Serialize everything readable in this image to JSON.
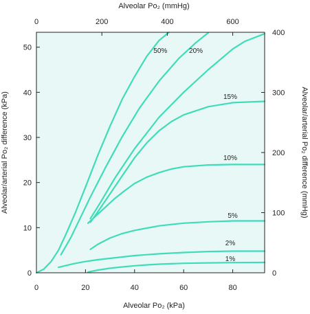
{
  "chart_data": {
    "type": "line",
    "xlabel": "Alveolar Po₂ (kPa)",
    "ylabel": "Alveolar/arterial Po₂ difference (kPa)",
    "x2label": "Alveolar Po₂ (mmHg)",
    "y2label": "Alveolar/arterial Po₂ difference (mmHg)",
    "xlim": [
      0,
      93
    ],
    "ylim": [
      0,
      53.3
    ],
    "x_ticks": [
      0,
      20,
      40,
      60,
      80
    ],
    "y_ticks": [
      0,
      10,
      20,
      30,
      40,
      50
    ],
    "x2_ticks": [
      0,
      200,
      400,
      600
    ],
    "y2_ticks": [
      0,
      100,
      200,
      300,
      400
    ],
    "x2_range_mmHg": [
      0,
      697.5
    ],
    "y2_range_mmHg": [
      0,
      400
    ],
    "background_color": "#e8f8f7",
    "line_color": "#3fdcb8",
    "grid": false,
    "series": [
      {
        "name": "50%",
        "label_at": [
          50.5,
          48.7
        ],
        "points": [
          [
            0,
            0
          ],
          [
            3,
            0.8
          ],
          [
            6,
            2.5
          ],
          [
            9,
            5
          ],
          [
            12,
            8.5
          ],
          [
            16,
            13.5
          ],
          [
            20,
            19
          ],
          [
            25,
            26
          ],
          [
            30,
            32.5
          ],
          [
            35,
            38.5
          ],
          [
            40,
            43.5
          ],
          [
            45,
            48
          ],
          [
            50,
            51.5
          ],
          [
            54,
            53.3
          ]
        ]
      },
      {
        "name": "20%",
        "label_at": [
          65,
          48.7
        ],
        "points": [
          [
            10,
            4
          ],
          [
            14,
            7.8
          ],
          [
            18,
            12.3
          ],
          [
            22,
            16.8
          ],
          [
            28,
            23.2
          ],
          [
            35,
            30.2
          ],
          [
            42,
            36.5
          ],
          [
            50,
            42.5
          ],
          [
            58,
            47.5
          ],
          [
            65,
            51
          ],
          [
            70,
            53.2
          ]
        ]
      },
      {
        "name": "20%",
        "label_at": null,
        "points": [
          [
            22,
            12
          ],
          [
            26,
            15.5
          ],
          [
            32,
            21
          ],
          [
            40,
            27.5
          ],
          [
            50,
            34.5
          ],
          [
            60,
            40
          ],
          [
            70,
            45
          ],
          [
            80,
            49.6
          ],
          [
            85,
            51.3
          ],
          [
            93,
            53
          ]
        ]
      },
      {
        "name": "15%",
        "label_at": [
          79,
          38.5
        ],
        "points": [
          [
            22,
            11.2
          ],
          [
            25,
            13.5
          ],
          [
            30,
            17.5
          ],
          [
            35,
            21.5
          ],
          [
            40,
            25.5
          ],
          [
            45,
            28.8
          ],
          [
            50,
            31.5
          ],
          [
            55,
            33.5
          ],
          [
            60,
            35
          ],
          [
            70,
            36.8
          ],
          [
            80,
            37.7
          ],
          [
            93,
            38
          ]
        ]
      },
      {
        "name": "10%",
        "label_at": [
          79,
          25
        ],
        "points": [
          [
            21,
            11
          ],
          [
            24,
            12.5
          ],
          [
            28,
            14.5
          ],
          [
            32,
            16.5
          ],
          [
            36,
            18.2
          ],
          [
            40,
            19.8
          ],
          [
            45,
            21.2
          ],
          [
            50,
            22.2
          ],
          [
            55,
            23
          ],
          [
            60,
            23.5
          ],
          [
            70,
            23.9
          ],
          [
            80,
            24
          ],
          [
            93,
            24
          ]
        ]
      },
      {
        "name": "5%",
        "label_at": [
          80,
          12.2
        ],
        "points": [
          [
            22,
            5.2
          ],
          [
            25,
            6.3
          ],
          [
            30,
            7.7
          ],
          [
            35,
            8.7
          ],
          [
            40,
            9.4
          ],
          [
            45,
            9.9
          ],
          [
            50,
            10.4
          ],
          [
            55,
            10.7
          ],
          [
            60,
            11
          ],
          [
            70,
            11.3
          ],
          [
            80,
            11.5
          ],
          [
            93,
            11.5
          ]
        ]
      },
      {
        "name": "2%",
        "label_at": [
          79,
          6.1
        ],
        "points": [
          [
            9,
            1.2
          ],
          [
            15,
            2
          ],
          [
            20,
            2.5
          ],
          [
            25,
            2.9
          ],
          [
            30,
            3.2
          ],
          [
            35,
            3.5
          ],
          [
            40,
            3.8
          ],
          [
            45,
            4
          ],
          [
            50,
            4.2
          ],
          [
            60,
            4.5
          ],
          [
            70,
            4.7
          ],
          [
            80,
            4.8
          ],
          [
            93,
            4.8
          ]
        ]
      },
      {
        "name": "1%",
        "label_at": [
          79,
          2.6
        ],
        "points": [
          [
            21,
            0.15
          ],
          [
            25,
            0.6
          ],
          [
            30,
            1
          ],
          [
            35,
            1.3
          ],
          [
            40,
            1.55
          ],
          [
            45,
            1.75
          ],
          [
            50,
            1.9
          ],
          [
            60,
            2.1
          ],
          [
            70,
            2.2
          ],
          [
            80,
            2.25
          ],
          [
            93,
            2.3
          ]
        ]
      }
    ]
  }
}
